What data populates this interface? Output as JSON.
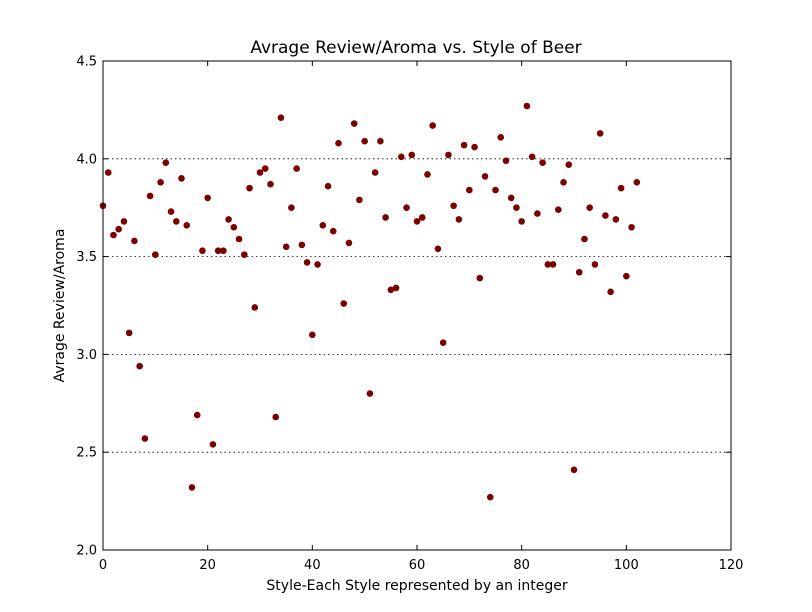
{
  "chart_data": {
    "type": "scatter",
    "title": "Avrage Review/Aroma vs. Style of Beer",
    "xlabel": "Style-Each Style represented by an integer",
    "ylabel": "Avrage Review/Aroma",
    "xlim": [
      0,
      120
    ],
    "ylim": [
      2.0,
      4.5
    ],
    "xticks": [
      0,
      20,
      40,
      60,
      80,
      100,
      120
    ],
    "yticks": [
      2.0,
      2.5,
      3.0,
      3.5,
      4.0,
      4.5
    ],
    "xtick_labels": [
      "0",
      "20",
      "40",
      "60",
      "80",
      "100",
      "120"
    ],
    "ytick_labels": [
      "2.0",
      "2.5",
      "3.0",
      "3.5",
      "4.0",
      "4.5"
    ],
    "grid": "y-dotted",
    "marker_color": "#7b0000",
    "x": [
      0,
      1,
      2,
      3,
      4,
      5,
      6,
      7,
      8,
      9,
      10,
      11,
      12,
      13,
      14,
      15,
      16,
      17,
      18,
      19,
      20,
      21,
      22,
      23,
      24,
      25,
      26,
      27,
      28,
      29,
      30,
      31,
      32,
      33,
      34,
      35,
      36,
      37,
      38,
      39,
      40,
      41,
      42,
      43,
      44,
      45,
      46,
      47,
      48,
      49,
      50,
      51,
      52,
      53,
      54,
      55,
      56,
      57,
      58,
      59,
      60,
      61,
      62,
      63,
      64,
      65,
      66,
      67,
      68,
      69,
      70,
      71,
      72,
      73,
      74,
      75,
      76,
      77,
      78,
      79,
      80,
      81,
      82,
      83,
      84,
      85,
      86,
      87,
      88,
      89,
      90,
      91,
      92,
      93,
      94,
      95,
      96,
      97,
      98,
      99,
      100,
      101,
      102
    ],
    "y": [
      3.76,
      3.93,
      3.61,
      3.64,
      3.68,
      3.11,
      3.58,
      2.94,
      2.57,
      3.81,
      3.51,
      3.88,
      3.98,
      3.73,
      3.68,
      3.9,
      3.66,
      2.32,
      2.69,
      3.53,
      3.8,
      2.54,
      3.53,
      3.53,
      3.69,
      3.65,
      3.59,
      3.51,
      3.85,
      3.24,
      3.93,
      3.95,
      3.87,
      2.68,
      4.21,
      3.55,
      3.75,
      3.95,
      3.56,
      3.47,
      3.1,
      3.46,
      3.66,
      3.86,
      3.63,
      4.08,
      3.26,
      3.57,
      4.18,
      3.79,
      4.09,
      2.8,
      3.93,
      4.09,
      3.7,
      3.33,
      3.34,
      4.01,
      3.75,
      4.02,
      3.68,
      3.7,
      3.92,
      4.17,
      3.54,
      3.06,
      4.02,
      3.76,
      3.69,
      4.07,
      3.84,
      4.06,
      3.39,
      3.91,
      2.27,
      3.84,
      4.11,
      3.99,
      3.8,
      3.75,
      3.68,
      4.27,
      4.01,
      3.72,
      3.98,
      3.46,
      3.46,
      3.74,
      3.88,
      3.97,
      2.41,
      3.42,
      3.59,
      3.75,
      3.46,
      4.13,
      3.71,
      3.32,
      3.69,
      3.85,
      3.4,
      3.65,
      3.88
    ]
  }
}
